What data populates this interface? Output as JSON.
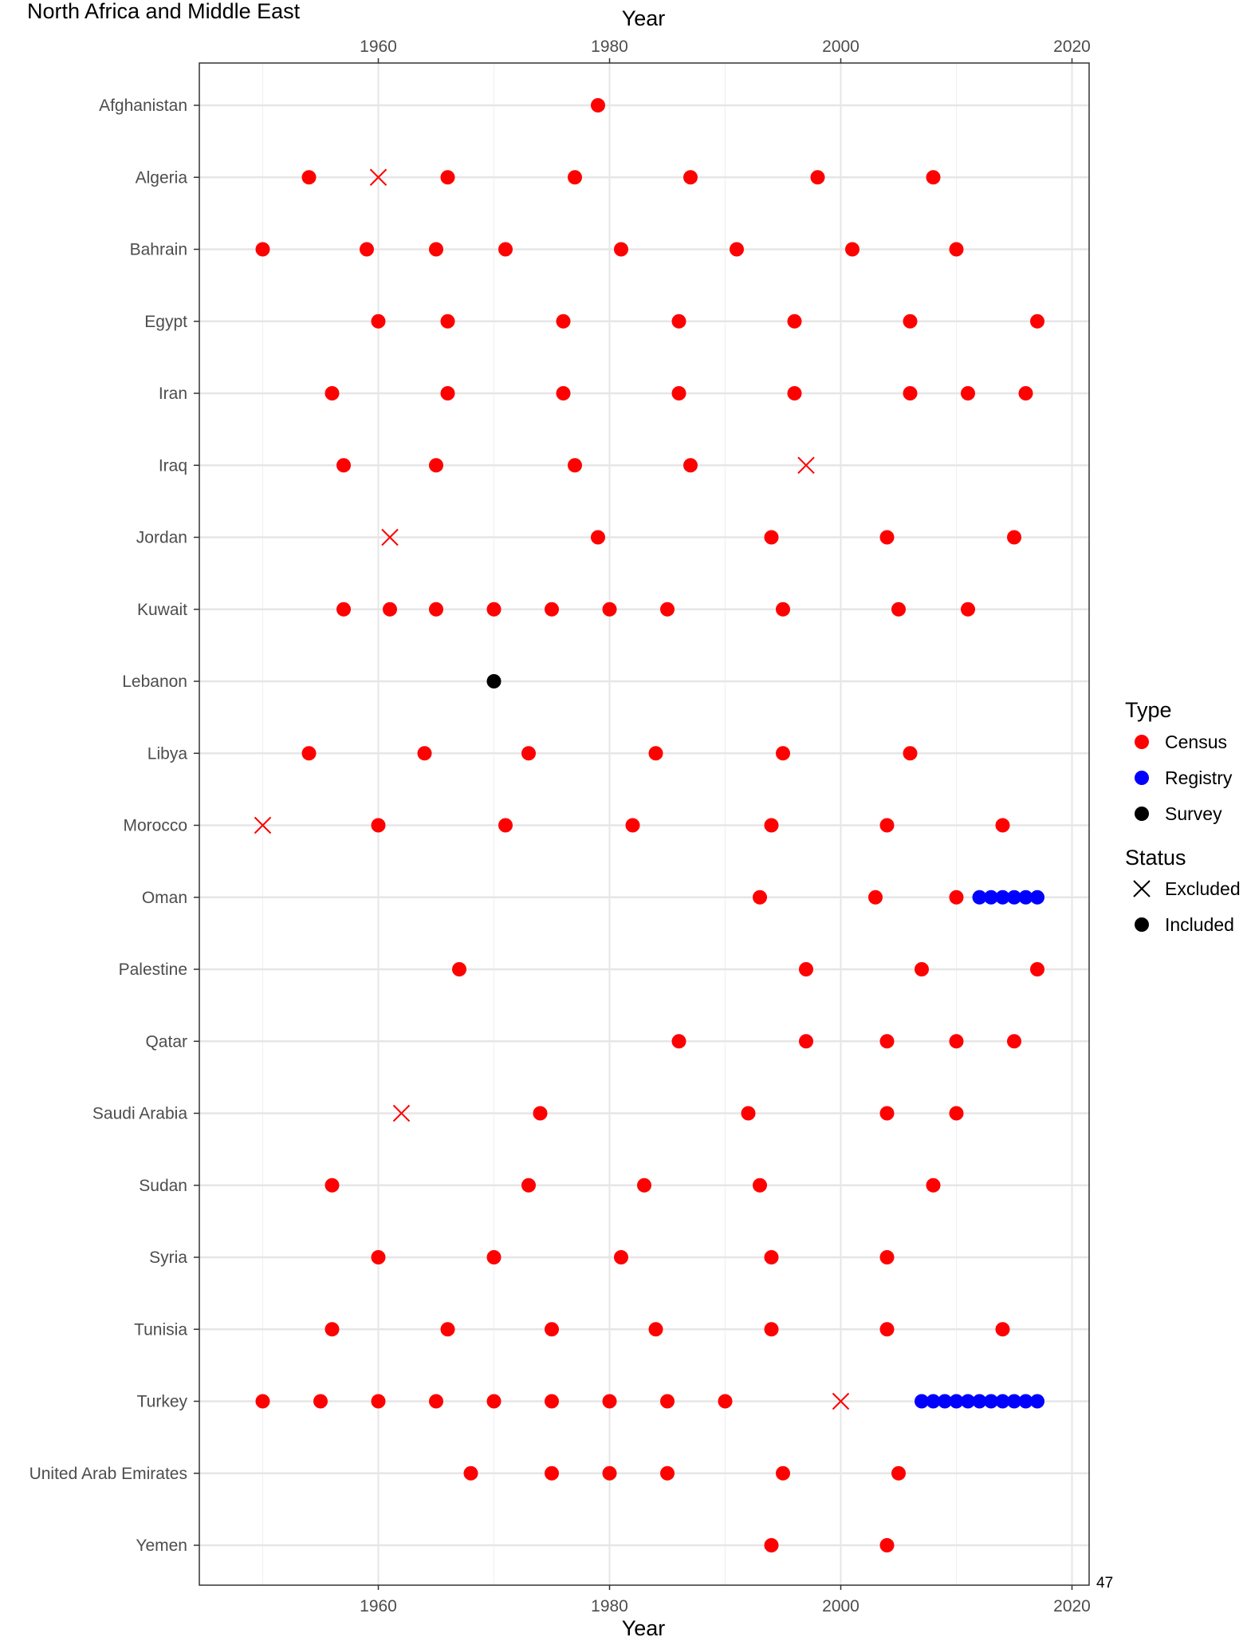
{
  "chart_data": {
    "type": "scatter",
    "title": "North Africa and Middle East",
    "xlabel": "Year",
    "ylabel": "",
    "xlim": [
      1945,
      2022
    ],
    "xticks": [
      "1960",
      "1980",
      "2000",
      "2020"
    ],
    "tick_values": [
      1960,
      1980,
      2000,
      2020
    ],
    "minor_ticks": [
      1950,
      1970,
      1990,
      2010
    ],
    "grid": true,
    "legend_position": "right",
    "page_number": "47",
    "colors": {
      "Census": "#ff0000",
      "Registry": "#0000ff",
      "Survey": "#000000"
    },
    "legend": {
      "type_title": "Type",
      "type_items": [
        "Census",
        "Registry",
        "Survey"
      ],
      "status_title": "Status",
      "status_items": [
        "Excluded",
        "Included"
      ]
    },
    "countries": [
      {
        "name": "Afghanistan",
        "points": [
          {
            "year": 1979,
            "type": "Census",
            "status": "Included"
          }
        ]
      },
      {
        "name": "Algeria",
        "points": [
          {
            "year": 1954,
            "type": "Census",
            "status": "Included"
          },
          {
            "year": 1960,
            "type": "Census",
            "status": "Excluded"
          },
          {
            "year": 1966,
            "type": "Census",
            "status": "Included"
          },
          {
            "year": 1977,
            "type": "Census",
            "status": "Included"
          },
          {
            "year": 1987,
            "type": "Census",
            "status": "Included"
          },
          {
            "year": 1998,
            "type": "Census",
            "status": "Included"
          },
          {
            "year": 2008,
            "type": "Census",
            "status": "Included"
          }
        ]
      },
      {
        "name": "Bahrain",
        "points": [
          {
            "year": 1950,
            "type": "Census",
            "status": "Included"
          },
          {
            "year": 1959,
            "type": "Census",
            "status": "Included"
          },
          {
            "year": 1965,
            "type": "Census",
            "status": "Included"
          },
          {
            "year": 1971,
            "type": "Census",
            "status": "Included"
          },
          {
            "year": 1981,
            "type": "Census",
            "status": "Included"
          },
          {
            "year": 1991,
            "type": "Census",
            "status": "Included"
          },
          {
            "year": 2001,
            "type": "Census",
            "status": "Included"
          },
          {
            "year": 2010,
            "type": "Census",
            "status": "Included"
          }
        ]
      },
      {
        "name": "Egypt",
        "points": [
          {
            "year": 1960,
            "type": "Census",
            "status": "Included"
          },
          {
            "year": 1966,
            "type": "Census",
            "status": "Included"
          },
          {
            "year": 1976,
            "type": "Census",
            "status": "Included"
          },
          {
            "year": 1986,
            "type": "Census",
            "status": "Included"
          },
          {
            "year": 1996,
            "type": "Census",
            "status": "Included"
          },
          {
            "year": 2006,
            "type": "Census",
            "status": "Included"
          },
          {
            "year": 2017,
            "type": "Census",
            "status": "Included"
          }
        ]
      },
      {
        "name": "Iran",
        "points": [
          {
            "year": 1956,
            "type": "Census",
            "status": "Included"
          },
          {
            "year": 1966,
            "type": "Census",
            "status": "Included"
          },
          {
            "year": 1976,
            "type": "Census",
            "status": "Included"
          },
          {
            "year": 1986,
            "type": "Census",
            "status": "Included"
          },
          {
            "year": 1996,
            "type": "Census",
            "status": "Included"
          },
          {
            "year": 2006,
            "type": "Census",
            "status": "Included"
          },
          {
            "year": 2011,
            "type": "Census",
            "status": "Included"
          },
          {
            "year": 2016,
            "type": "Census",
            "status": "Included"
          }
        ]
      },
      {
        "name": "Iraq",
        "points": [
          {
            "year": 1957,
            "type": "Census",
            "status": "Included"
          },
          {
            "year": 1965,
            "type": "Census",
            "status": "Included"
          },
          {
            "year": 1977,
            "type": "Census",
            "status": "Included"
          },
          {
            "year": 1987,
            "type": "Census",
            "status": "Included"
          },
          {
            "year": 1997,
            "type": "Census",
            "status": "Excluded"
          }
        ]
      },
      {
        "name": "Jordan",
        "points": [
          {
            "year": 1961,
            "type": "Census",
            "status": "Excluded"
          },
          {
            "year": 1979,
            "type": "Census",
            "status": "Included"
          },
          {
            "year": 1994,
            "type": "Census",
            "status": "Included"
          },
          {
            "year": 2004,
            "type": "Census",
            "status": "Included"
          },
          {
            "year": 2015,
            "type": "Census",
            "status": "Included"
          }
        ]
      },
      {
        "name": "Kuwait",
        "points": [
          {
            "year": 1957,
            "type": "Census",
            "status": "Included"
          },
          {
            "year": 1961,
            "type": "Census",
            "status": "Included"
          },
          {
            "year": 1965,
            "type": "Census",
            "status": "Included"
          },
          {
            "year": 1970,
            "type": "Census",
            "status": "Included"
          },
          {
            "year": 1975,
            "type": "Census",
            "status": "Included"
          },
          {
            "year": 1980,
            "type": "Census",
            "status": "Included"
          },
          {
            "year": 1985,
            "type": "Census",
            "status": "Included"
          },
          {
            "year": 1995,
            "type": "Census",
            "status": "Included"
          },
          {
            "year": 2005,
            "type": "Census",
            "status": "Included"
          },
          {
            "year": 2011,
            "type": "Census",
            "status": "Included"
          }
        ]
      },
      {
        "name": "Lebanon",
        "points": [
          {
            "year": 1970,
            "type": "Survey",
            "status": "Included"
          }
        ]
      },
      {
        "name": "Libya",
        "points": [
          {
            "year": 1954,
            "type": "Census",
            "status": "Included"
          },
          {
            "year": 1964,
            "type": "Census",
            "status": "Included"
          },
          {
            "year": 1973,
            "type": "Census",
            "status": "Included"
          },
          {
            "year": 1984,
            "type": "Census",
            "status": "Included"
          },
          {
            "year": 1995,
            "type": "Census",
            "status": "Included"
          },
          {
            "year": 2006,
            "type": "Census",
            "status": "Included"
          }
        ]
      },
      {
        "name": "Morocco",
        "points": [
          {
            "year": 1950,
            "type": "Census",
            "status": "Excluded"
          },
          {
            "year": 1960,
            "type": "Census",
            "status": "Included"
          },
          {
            "year": 1971,
            "type": "Census",
            "status": "Included"
          },
          {
            "year": 1982,
            "type": "Census",
            "status": "Included"
          },
          {
            "year": 1994,
            "type": "Census",
            "status": "Included"
          },
          {
            "year": 2004,
            "type": "Census",
            "status": "Included"
          },
          {
            "year": 2014,
            "type": "Census",
            "status": "Included"
          }
        ]
      },
      {
        "name": "Oman",
        "points": [
          {
            "year": 1993,
            "type": "Census",
            "status": "Included"
          },
          {
            "year": 2003,
            "type": "Census",
            "status": "Included"
          },
          {
            "year": 2010,
            "type": "Census",
            "status": "Included"
          },
          {
            "year": 2012,
            "type": "Registry",
            "status": "Included"
          },
          {
            "year": 2013,
            "type": "Registry",
            "status": "Included"
          },
          {
            "year": 2014,
            "type": "Registry",
            "status": "Included"
          },
          {
            "year": 2015,
            "type": "Registry",
            "status": "Included"
          },
          {
            "year": 2016,
            "type": "Registry",
            "status": "Included"
          },
          {
            "year": 2017,
            "type": "Registry",
            "status": "Included"
          }
        ]
      },
      {
        "name": "Palestine",
        "points": [
          {
            "year": 1967,
            "type": "Census",
            "status": "Included"
          },
          {
            "year": 1997,
            "type": "Census",
            "status": "Included"
          },
          {
            "year": 2007,
            "type": "Census",
            "status": "Included"
          },
          {
            "year": 2017,
            "type": "Census",
            "status": "Included"
          }
        ]
      },
      {
        "name": "Qatar",
        "points": [
          {
            "year": 1986,
            "type": "Census",
            "status": "Included"
          },
          {
            "year": 1997,
            "type": "Census",
            "status": "Included"
          },
          {
            "year": 2004,
            "type": "Census",
            "status": "Included"
          },
          {
            "year": 2010,
            "type": "Census",
            "status": "Included"
          },
          {
            "year": 2015,
            "type": "Census",
            "status": "Included"
          }
        ]
      },
      {
        "name": "Saudi Arabia",
        "points": [
          {
            "year": 1962,
            "type": "Census",
            "status": "Excluded"
          },
          {
            "year": 1974,
            "type": "Census",
            "status": "Included"
          },
          {
            "year": 1992,
            "type": "Census",
            "status": "Included"
          },
          {
            "year": 2004,
            "type": "Census",
            "status": "Included"
          },
          {
            "year": 2010,
            "type": "Census",
            "status": "Included"
          }
        ]
      },
      {
        "name": "Sudan",
        "points": [
          {
            "year": 1956,
            "type": "Census",
            "status": "Included"
          },
          {
            "year": 1973,
            "type": "Census",
            "status": "Included"
          },
          {
            "year": 1983,
            "type": "Census",
            "status": "Included"
          },
          {
            "year": 1993,
            "type": "Census",
            "status": "Included"
          },
          {
            "year": 2008,
            "type": "Census",
            "status": "Included"
          }
        ]
      },
      {
        "name": "Syria",
        "points": [
          {
            "year": 1960,
            "type": "Census",
            "status": "Included"
          },
          {
            "year": 1970,
            "type": "Census",
            "status": "Included"
          },
          {
            "year": 1981,
            "type": "Census",
            "status": "Included"
          },
          {
            "year": 1994,
            "type": "Census",
            "status": "Included"
          },
          {
            "year": 2004,
            "type": "Census",
            "status": "Included"
          }
        ]
      },
      {
        "name": "Tunisia",
        "points": [
          {
            "year": 1956,
            "type": "Census",
            "status": "Included"
          },
          {
            "year": 1966,
            "type": "Census",
            "status": "Included"
          },
          {
            "year": 1975,
            "type": "Census",
            "status": "Included"
          },
          {
            "year": 1984,
            "type": "Census",
            "status": "Included"
          },
          {
            "year": 1994,
            "type": "Census",
            "status": "Included"
          },
          {
            "year": 2004,
            "type": "Census",
            "status": "Included"
          },
          {
            "year": 2014,
            "type": "Census",
            "status": "Included"
          }
        ]
      },
      {
        "name": "Turkey",
        "points": [
          {
            "year": 1950,
            "type": "Census",
            "status": "Included"
          },
          {
            "year": 1955,
            "type": "Census",
            "status": "Included"
          },
          {
            "year": 1960,
            "type": "Census",
            "status": "Included"
          },
          {
            "year": 1965,
            "type": "Census",
            "status": "Included"
          },
          {
            "year": 1970,
            "type": "Census",
            "status": "Included"
          },
          {
            "year": 1975,
            "type": "Census",
            "status": "Included"
          },
          {
            "year": 1980,
            "type": "Census",
            "status": "Included"
          },
          {
            "year": 1985,
            "type": "Census",
            "status": "Included"
          },
          {
            "year": 1990,
            "type": "Census",
            "status": "Included"
          },
          {
            "year": 2000,
            "type": "Census",
            "status": "Excluded"
          },
          {
            "year": 2007,
            "type": "Registry",
            "status": "Included"
          },
          {
            "year": 2008,
            "type": "Registry",
            "status": "Included"
          },
          {
            "year": 2009,
            "type": "Registry",
            "status": "Included"
          },
          {
            "year": 2010,
            "type": "Registry",
            "status": "Included"
          },
          {
            "year": 2011,
            "type": "Registry",
            "status": "Included"
          },
          {
            "year": 2012,
            "type": "Registry",
            "status": "Included"
          },
          {
            "year": 2013,
            "type": "Registry",
            "status": "Included"
          },
          {
            "year": 2014,
            "type": "Registry",
            "status": "Included"
          },
          {
            "year": 2015,
            "type": "Registry",
            "status": "Included"
          },
          {
            "year": 2016,
            "type": "Registry",
            "status": "Included"
          },
          {
            "year": 2017,
            "type": "Registry",
            "status": "Included"
          }
        ]
      },
      {
        "name": "United Arab Emirates",
        "points": [
          {
            "year": 1968,
            "type": "Census",
            "status": "Included"
          },
          {
            "year": 1975,
            "type": "Census",
            "status": "Included"
          },
          {
            "year": 1980,
            "type": "Census",
            "status": "Included"
          },
          {
            "year": 1985,
            "type": "Census",
            "status": "Included"
          },
          {
            "year": 1995,
            "type": "Census",
            "status": "Included"
          },
          {
            "year": 2005,
            "type": "Census",
            "status": "Included"
          }
        ]
      },
      {
        "name": "Yemen",
        "points": [
          {
            "year": 1994,
            "type": "Census",
            "status": "Included"
          },
          {
            "year": 2004,
            "type": "Census",
            "status": "Included"
          }
        ]
      }
    ]
  }
}
